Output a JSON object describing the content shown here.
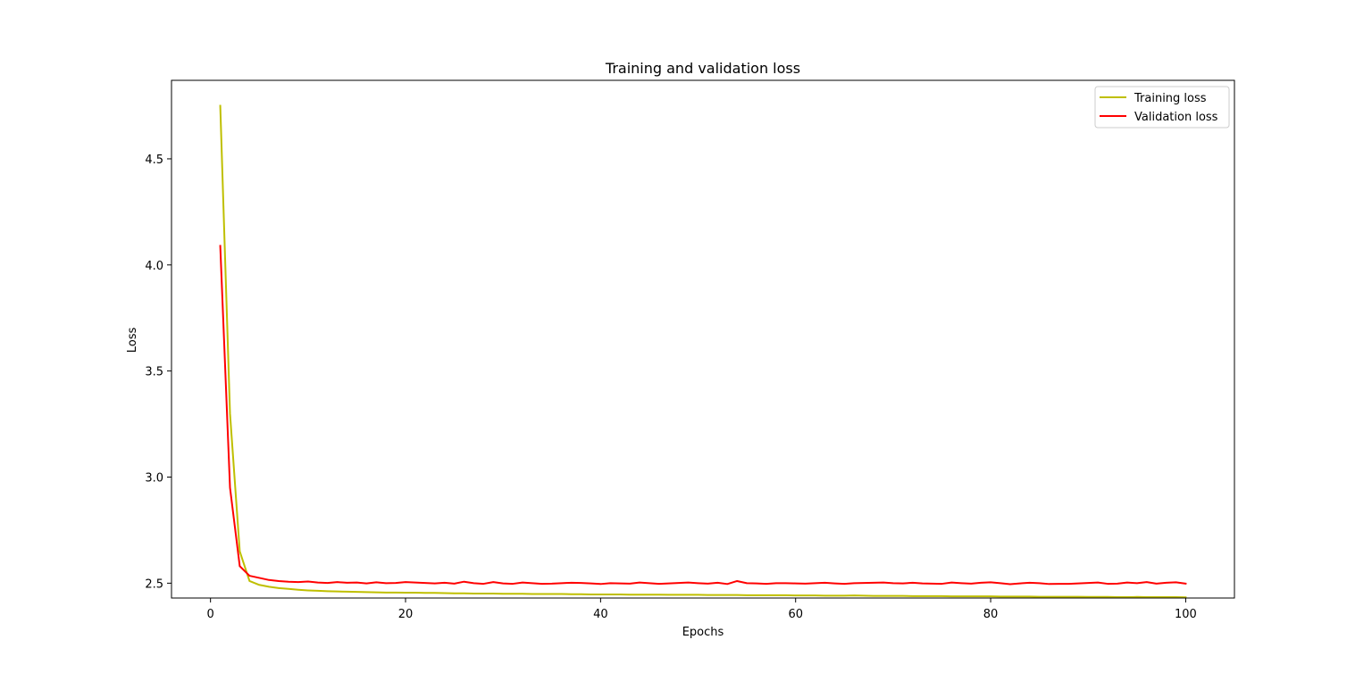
{
  "chart_data": {
    "type": "line",
    "title": "Training and validation loss",
    "xlabel": "Epochs",
    "ylabel": "Loss",
    "xlim": [
      -4,
      105
    ],
    "ylim": [
      2.43,
      4.87
    ],
    "xticks": [
      0,
      20,
      40,
      60,
      80,
      100
    ],
    "yticks": [
      2.5,
      3.0,
      3.5,
      4.0,
      4.5
    ],
    "xtick_labels": [
      "0",
      "20",
      "40",
      "60",
      "80",
      "100"
    ],
    "ytick_labels": [
      "2.5",
      "3.0",
      "3.5",
      "4.0",
      "4.5"
    ],
    "grid": false,
    "legend_position": "top-right",
    "x": [
      1,
      2,
      3,
      4,
      5,
      6,
      7,
      8,
      9,
      10,
      11,
      12,
      13,
      14,
      15,
      16,
      17,
      18,
      19,
      20,
      21,
      22,
      23,
      24,
      25,
      26,
      27,
      28,
      29,
      30,
      31,
      32,
      33,
      34,
      35,
      36,
      37,
      38,
      39,
      40,
      41,
      42,
      43,
      44,
      45,
      46,
      47,
      48,
      49,
      50,
      51,
      52,
      53,
      54,
      55,
      56,
      57,
      58,
      59,
      60,
      61,
      62,
      63,
      64,
      65,
      66,
      67,
      68,
      69,
      70,
      71,
      72,
      73,
      74,
      75,
      76,
      77,
      78,
      79,
      80,
      81,
      82,
      83,
      84,
      85,
      86,
      87,
      88,
      89,
      90,
      91,
      92,
      93,
      94,
      95,
      96,
      97,
      98,
      99,
      100
    ],
    "series": [
      {
        "name": "Training loss",
        "color": "#bfbf00",
        "values": [
          4.75,
          3.3,
          2.65,
          2.51,
          2.492,
          2.483,
          2.477,
          2.473,
          2.469,
          2.466,
          2.464,
          2.462,
          2.461,
          2.46,
          2.459,
          2.458,
          2.457,
          2.456,
          2.456,
          2.455,
          2.455,
          2.454,
          2.454,
          2.453,
          2.452,
          2.452,
          2.451,
          2.451,
          2.451,
          2.45,
          2.45,
          2.45,
          2.449,
          2.449,
          2.449,
          2.449,
          2.448,
          2.448,
          2.447,
          2.447,
          2.447,
          2.447,
          2.446,
          2.446,
          2.446,
          2.446,
          2.445,
          2.445,
          2.445,
          2.445,
          2.444,
          2.444,
          2.444,
          2.444,
          2.443,
          2.443,
          2.443,
          2.443,
          2.443,
          2.442,
          2.442,
          2.442,
          2.441,
          2.441,
          2.441,
          2.442,
          2.441,
          2.44,
          2.44,
          2.44,
          2.44,
          2.439,
          2.439,
          2.439,
          2.439,
          2.438,
          2.438,
          2.438,
          2.438,
          2.438,
          2.437,
          2.437,
          2.437,
          2.437,
          2.436,
          2.436,
          2.436,
          2.436,
          2.436,
          2.435,
          2.435,
          2.435,
          2.434,
          2.434,
          2.435,
          2.434,
          2.434,
          2.434,
          2.434,
          2.433
        ]
      },
      {
        "name": "Validation loss",
        "color": "#ff0000",
        "values": [
          4.09,
          2.95,
          2.58,
          2.535,
          2.525,
          2.515,
          2.51,
          2.507,
          2.505,
          2.508,
          2.503,
          2.501,
          2.505,
          2.502,
          2.503,
          2.499,
          2.504,
          2.5,
          2.501,
          2.505,
          2.503,
          2.501,
          2.499,
          2.502,
          2.498,
          2.507,
          2.5,
          2.497,
          2.505,
          2.499,
          2.497,
          2.503,
          2.5,
          2.497,
          2.498,
          2.5,
          2.502,
          2.501,
          2.499,
          2.496,
          2.5,
          2.499,
          2.498,
          2.503,
          2.5,
          2.497,
          2.499,
          2.501,
          2.503,
          2.5,
          2.498,
          2.502,
          2.496,
          2.51,
          2.5,
          2.499,
          2.497,
          2.5,
          2.5,
          2.499,
          2.498,
          2.5,
          2.502,
          2.499,
          2.497,
          2.5,
          2.501,
          2.502,
          2.503,
          2.5,
          2.499,
          2.502,
          2.499,
          2.498,
          2.497,
          2.503,
          2.5,
          2.498,
          2.502,
          2.504,
          2.5,
          2.495,
          2.499,
          2.502,
          2.5,
          2.496,
          2.497,
          2.497,
          2.499,
          2.501,
          2.503,
          2.497,
          2.498,
          2.503,
          2.5,
          2.505,
          2.498,
          2.502,
          2.504,
          2.498
        ]
      }
    ]
  }
}
